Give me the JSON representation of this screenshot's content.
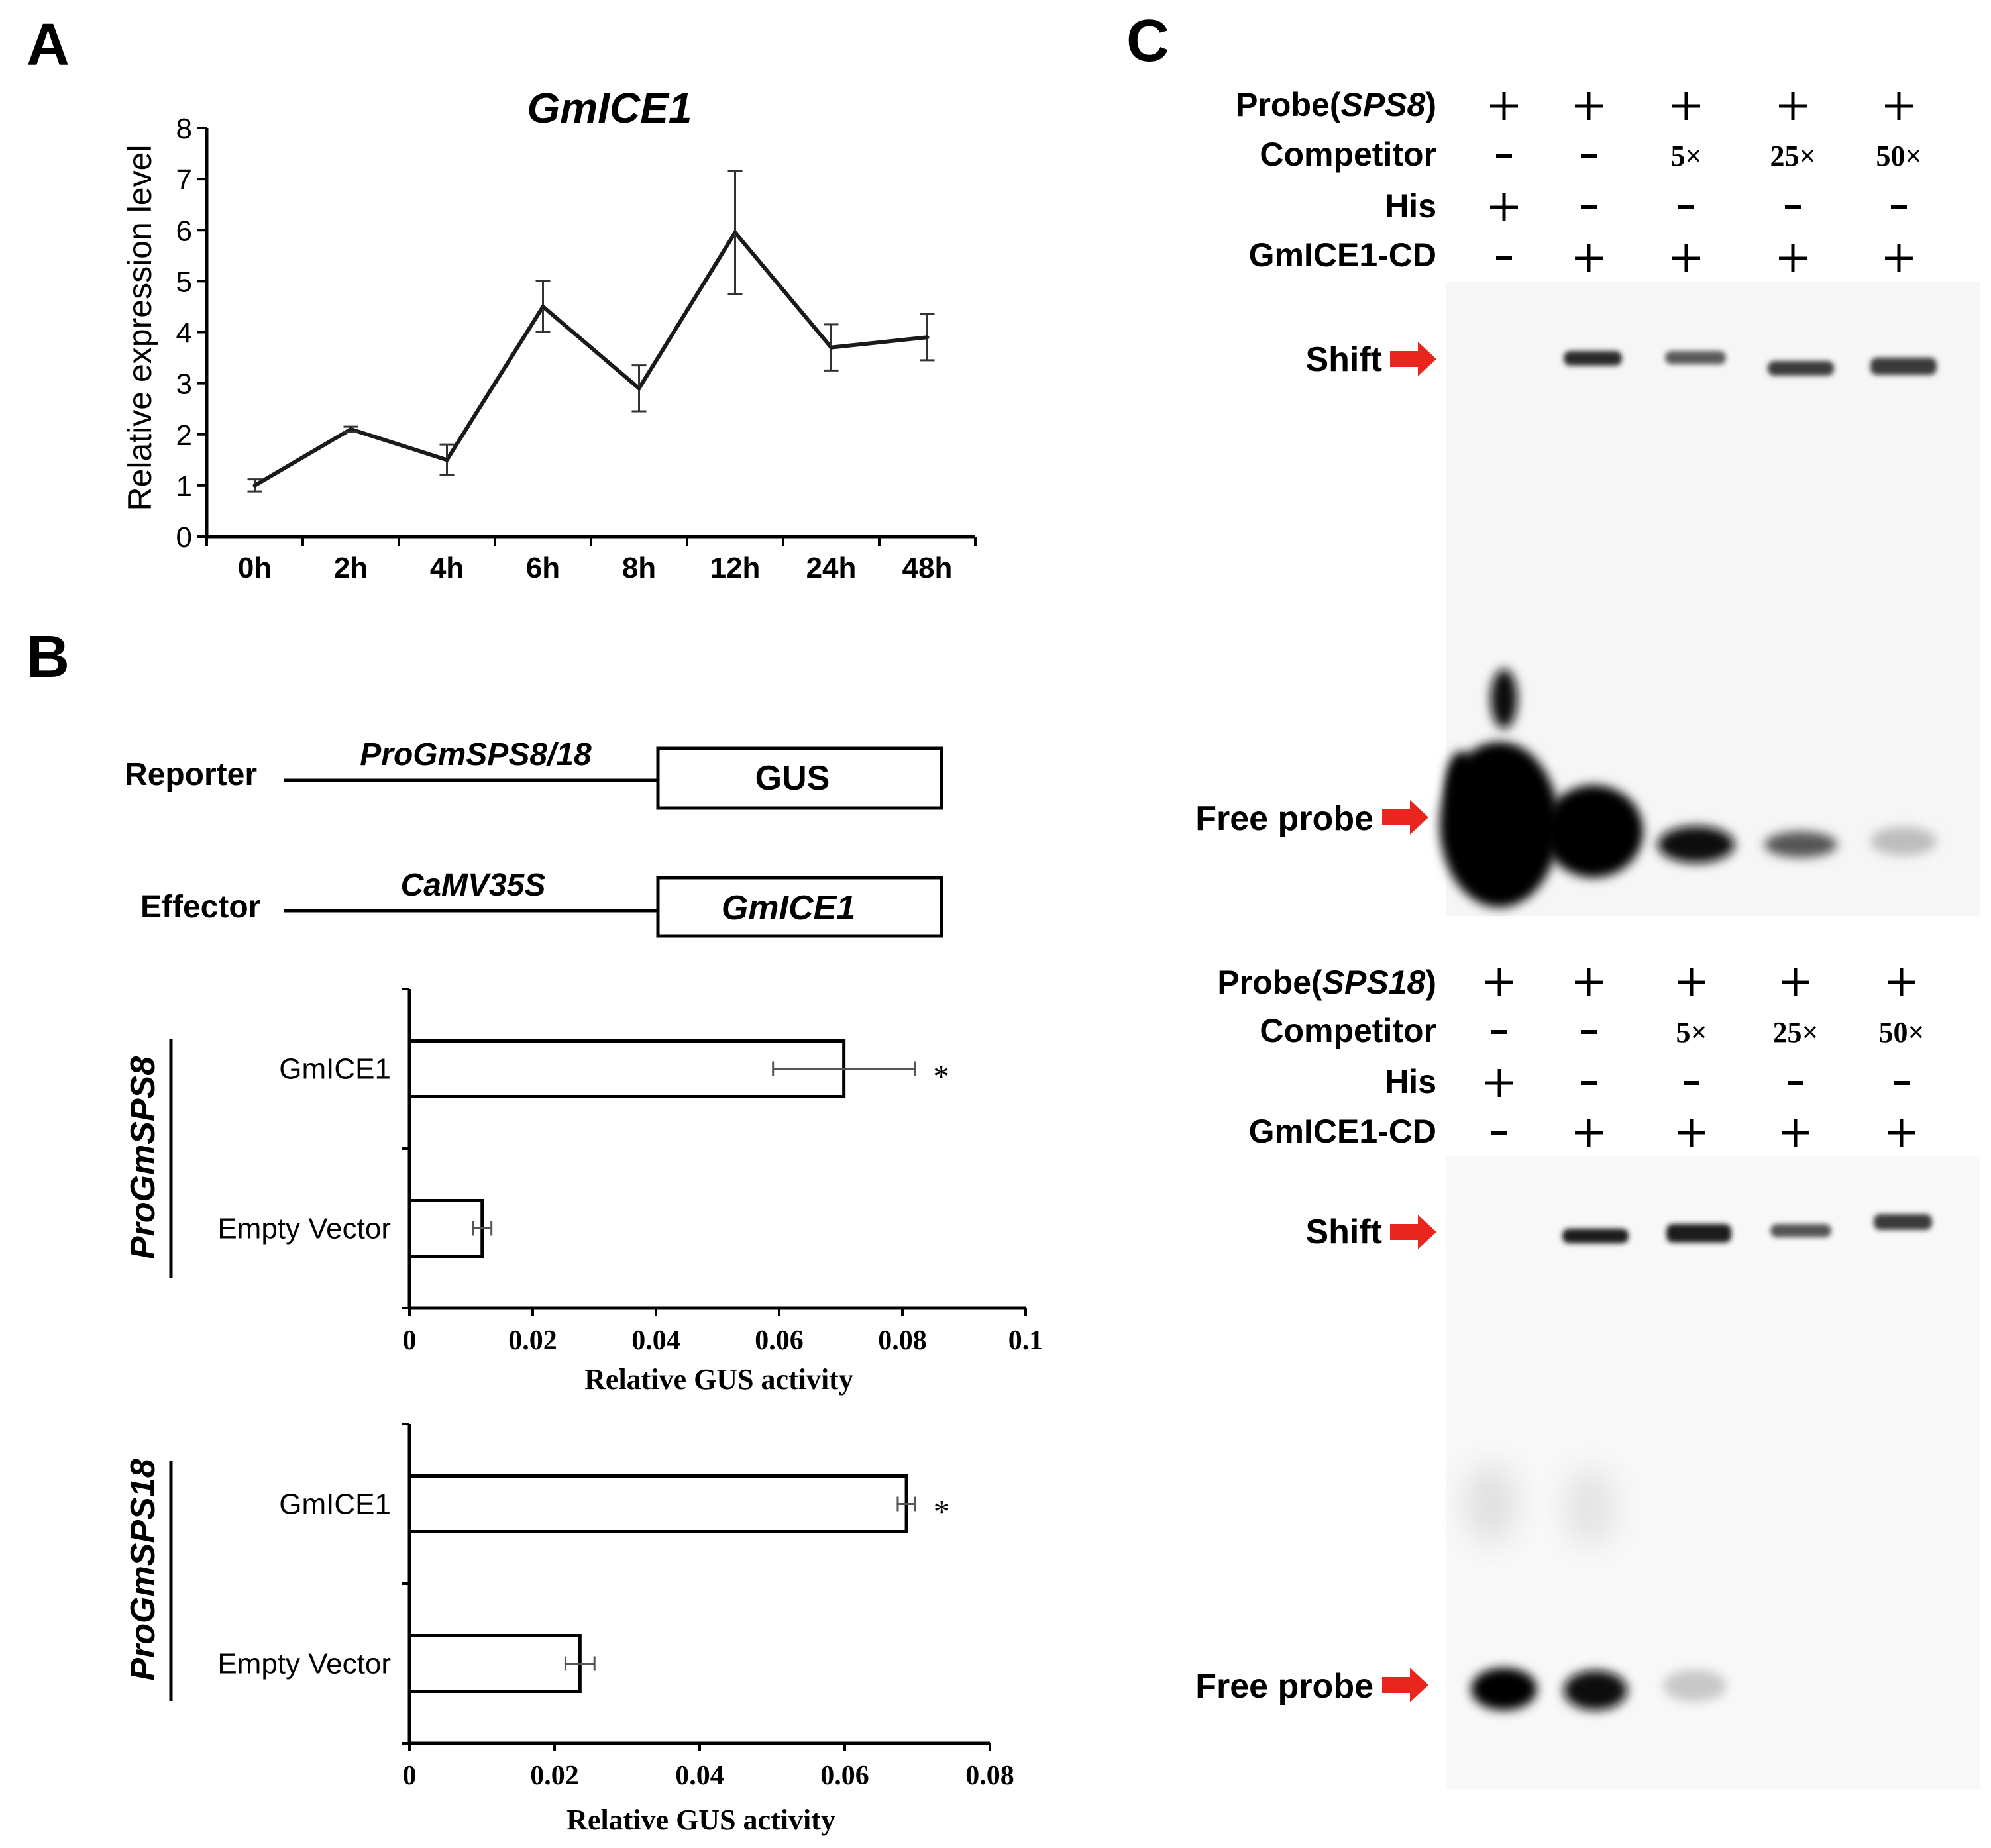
{
  "panels": {
    "a": "A",
    "b": "B",
    "c": "C"
  },
  "panel_a": {
    "chart_data": {
      "type": "line",
      "title": "GmICE1",
      "ylabel": "Relative expression level",
      "xlabel": "",
      "categories": [
        "0h",
        "2h",
        "4h",
        "6h",
        "8h",
        "12h",
        "24h",
        "48h"
      ],
      "values": [
        1.0,
        2.1,
        1.5,
        4.5,
        2.9,
        5.95,
        3.7,
        3.9
      ],
      "errors": [
        0.12,
        0.05,
        0.3,
        0.5,
        0.45,
        1.2,
        0.45,
        0.45
      ],
      "ylim": [
        0,
        8
      ],
      "yticks": [
        "0",
        "1",
        "2",
        "3",
        "4",
        "5",
        "6",
        "7",
        "8"
      ]
    }
  },
  "panel_b": {
    "reporter": {
      "label": "Reporter",
      "promoter": "ProGmSPS8/18",
      "gene": "GUS"
    },
    "effector": {
      "label": "Effector",
      "promoter": "CaMV35S",
      "gene": "GmICE1"
    },
    "charts": [
      {
        "group_label": "ProGmSPS8",
        "chart_data": {
          "type": "bar",
          "orientation": "horizontal",
          "categories": [
            "GmICE1",
            "Empty Vector"
          ],
          "values": [
            0.0705,
            0.0118
          ],
          "errors": [
            0.0115,
            0.0015
          ],
          "significance": [
            "*",
            ""
          ],
          "xlabel": "Relative GUS activity",
          "xlim": [
            0,
            0.1
          ],
          "xticks": [
            "0",
            "0.02",
            "0.04",
            "0.06",
            "0.08",
            "0.1"
          ]
        }
      },
      {
        "group_label": "ProGmSPS18",
        "chart_data": {
          "type": "bar",
          "orientation": "horizontal",
          "categories": [
            "GmICE1",
            "Empty Vector"
          ],
          "values": [
            0.0685,
            0.0235
          ],
          "errors": [
            0.0012,
            0.002
          ],
          "significance": [
            "*",
            ""
          ],
          "xlabel": "Relative GUS activity",
          "xlim": [
            0,
            0.08
          ],
          "xticks": [
            "0",
            "0.02",
            "0.04",
            "0.06",
            "0.08"
          ]
        }
      }
    ]
  },
  "panel_c": {
    "gels": [
      {
        "rows": [
          {
            "prefix": "Probe(",
            "italic": "SPS8",
            "suffix": ")",
            "values": [
              "+",
              "+",
              "+",
              "+",
              "+"
            ]
          },
          {
            "prefix": "Competitor",
            "italic": "",
            "suffix": "",
            "values": [
              "-",
              "-",
              "5×",
              "25×",
              "50×"
            ]
          },
          {
            "prefix": "His",
            "italic": "",
            "suffix": "",
            "values": [
              "+",
              "-",
              "-",
              "-",
              "-"
            ]
          },
          {
            "prefix": "GmICE1-CD",
            "italic": "",
            "suffix": "",
            "values": [
              "-",
              "+",
              "+",
              "+",
              "+"
            ]
          }
        ],
        "shift_label": "Shift",
        "free_label": "Free probe"
      },
      {
        "rows": [
          {
            "prefix": "Probe(",
            "italic": "SPS18",
            "suffix": ")",
            "values": [
              "+",
              "+",
              "+",
              "+",
              "+"
            ]
          },
          {
            "prefix": "Competitor",
            "italic": "",
            "suffix": "",
            "values": [
              "-",
              "-",
              "5×",
              "25×",
              "50×"
            ]
          },
          {
            "prefix": "His",
            "italic": "",
            "suffix": "",
            "values": [
              "+",
              "-",
              "-",
              "-",
              "-"
            ]
          },
          {
            "prefix": "GmICE1-CD",
            "italic": "",
            "suffix": "",
            "values": [
              "-",
              "+",
              "+",
              "+",
              "+"
            ]
          }
        ],
        "shift_label": "Shift",
        "free_label": "Free probe"
      }
    ]
  }
}
